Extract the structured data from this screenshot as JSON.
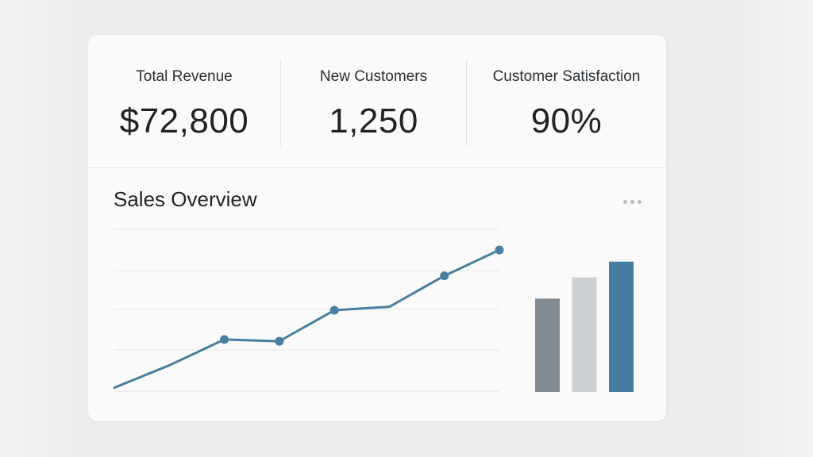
{
  "kpis": [
    {
      "label": "Total Revenue",
      "value": "$72,800"
    },
    {
      "label": "New Customers",
      "value": "1,250"
    },
    {
      "label": "Customer Satisfaction",
      "value": "90%"
    }
  ],
  "sales_overview": {
    "title": "Sales Overview",
    "more_icon": "more-horizontal-icon"
  },
  "chart_data": [
    {
      "type": "line",
      "title": "",
      "grid": true,
      "color": "#4a7fa1",
      "series": [
        {
          "values": [
            2,
            15,
            30,
            29,
            47,
            49,
            67,
            82
          ],
          "markers": [
            false,
            false,
            true,
            true,
            true,
            false,
            true,
            true
          ]
        }
      ],
      "ylim": [
        0,
        100
      ]
    },
    {
      "type": "bar",
      "title": "",
      "values": [
        53,
        65,
        74
      ],
      "colors": [
        "#848c93",
        "#ccd0d2",
        "#457ea2"
      ],
      "ylim": [
        0,
        100
      ]
    }
  ]
}
